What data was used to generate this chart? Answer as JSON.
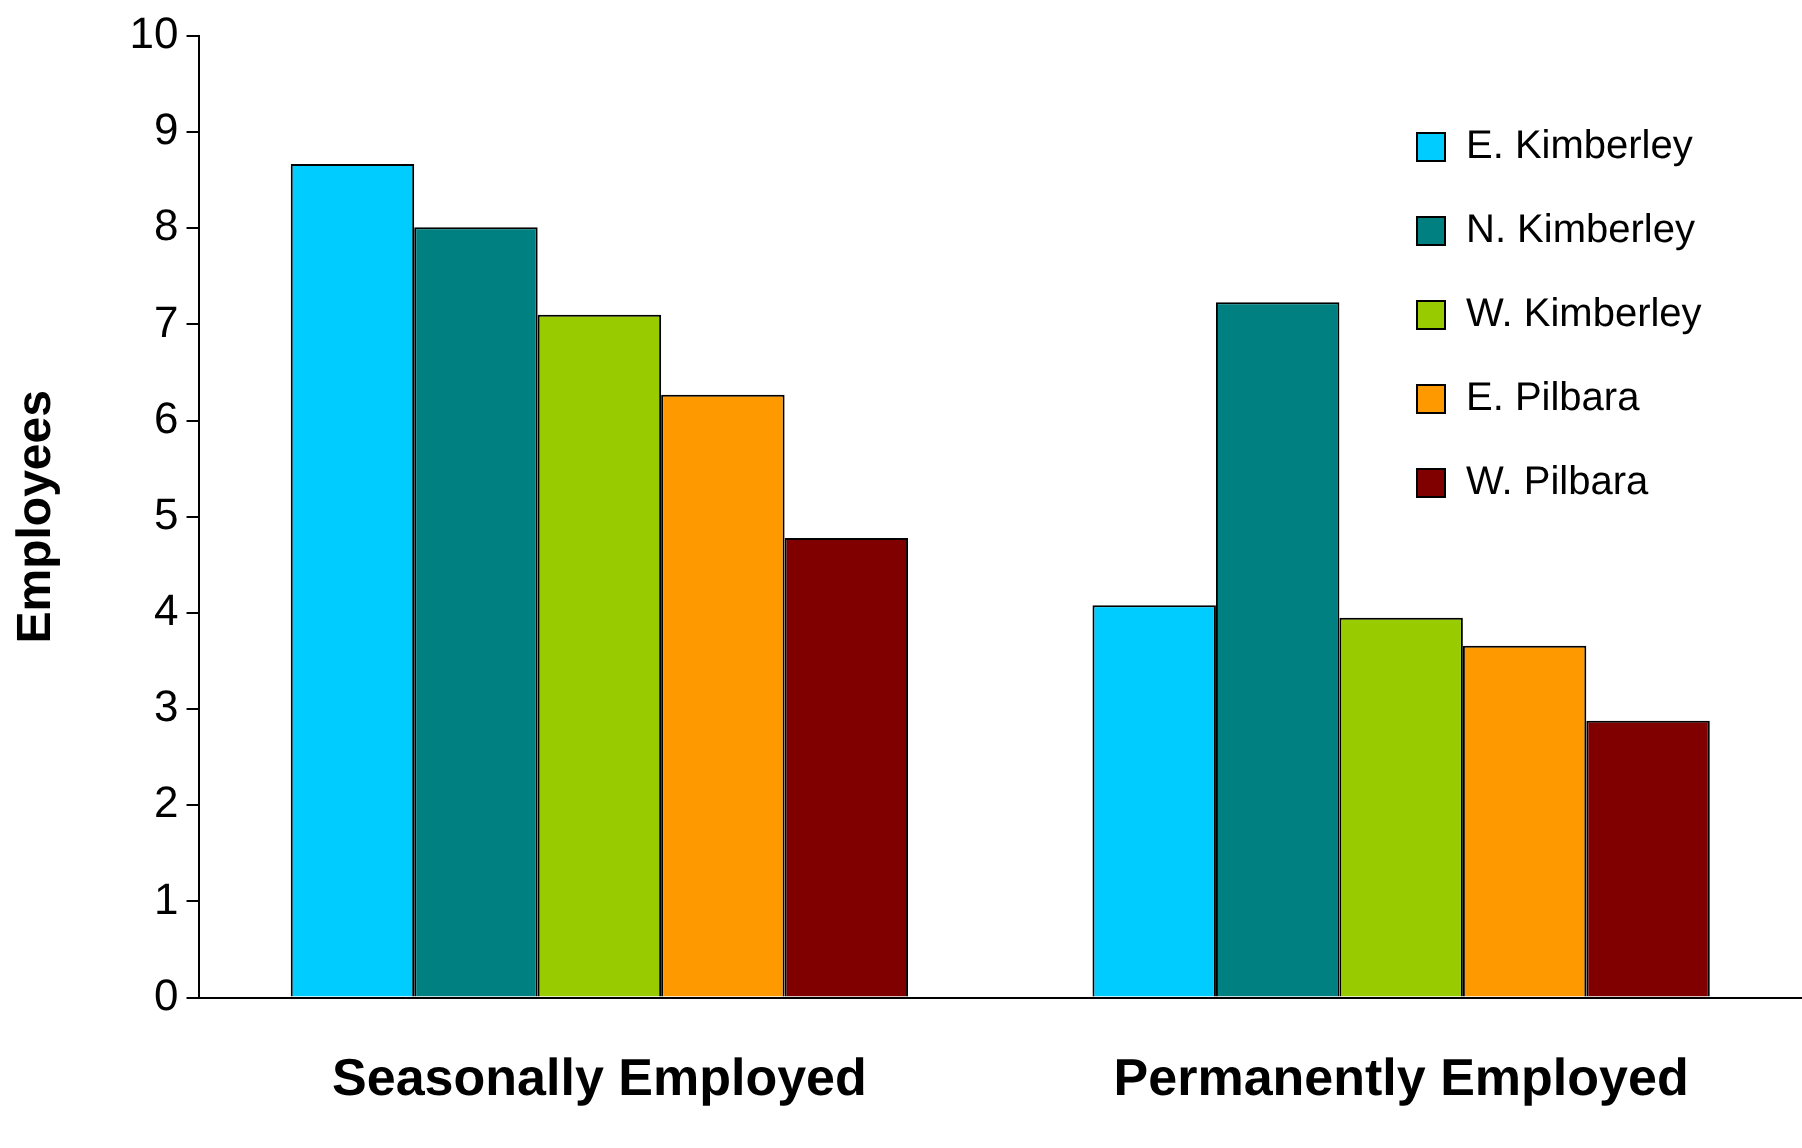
{
  "chart_data": {
    "type": "bar",
    "ylabel": "Employees",
    "categories": [
      "Seasonally Employed",
      "Permanently Employed"
    ],
    "series": [
      {
        "name": "E. Kimberley",
        "color": "#00ccff",
        "values": [
          8.67,
          4.08
        ]
      },
      {
        "name": "N. Kimberley",
        "color": "#008080",
        "values": [
          8.01,
          7.23
        ]
      },
      {
        "name": "W. Kimberley",
        "color": "#99cc00",
        "values": [
          7.1,
          3.95
        ]
      },
      {
        "name": "E. Pilbara",
        "color": "#ff9900",
        "values": [
          6.27,
          3.66
        ]
      },
      {
        "name": "W. Pilbara",
        "color": "#800000",
        "values": [
          4.78,
          2.88
        ]
      }
    ],
    "ylim": [
      0,
      10
    ],
    "yticks": [
      0,
      1,
      2,
      3,
      4,
      5,
      6,
      7,
      8,
      9,
      10
    ],
    "grid": false,
    "legend": "top right"
  }
}
